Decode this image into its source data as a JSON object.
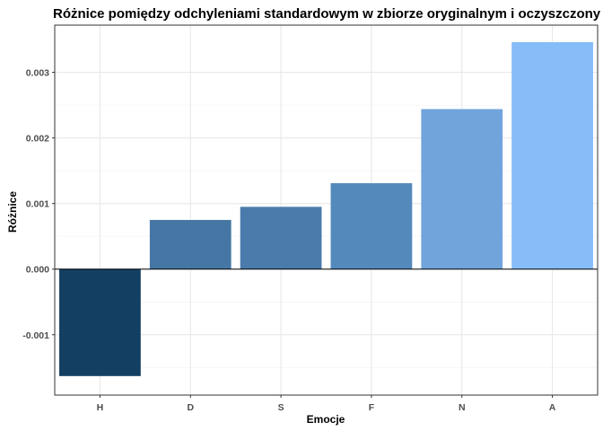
{
  "chart_data": {
    "type": "bar",
    "title": "Różnice pomiędzy odchyleniami standardowym w zbiorze oryginalnym i oczyszczony",
    "xlabel": "Emocje",
    "ylabel": "Różnice",
    "categories": [
      "H",
      "D",
      "S",
      "F",
      "N",
      "A"
    ],
    "values": [
      -0.00163,
      0.00075,
      0.00095,
      0.00131,
      0.00244,
      0.00346
    ],
    "colors": [
      "#133f62",
      "#4677a4",
      "#4a7bab",
      "#5489bc",
      "#70a4da",
      "#86bcf8"
    ],
    "ylim": [
      -0.00192,
      0.00372
    ],
    "yticks": [
      -0.001,
      0.0,
      0.001,
      0.002,
      0.003
    ],
    "ytick_labels": [
      "-0.001",
      "0.000",
      "0.001",
      "0.002",
      "0.003"
    ],
    "grid": true,
    "legend": "none"
  }
}
